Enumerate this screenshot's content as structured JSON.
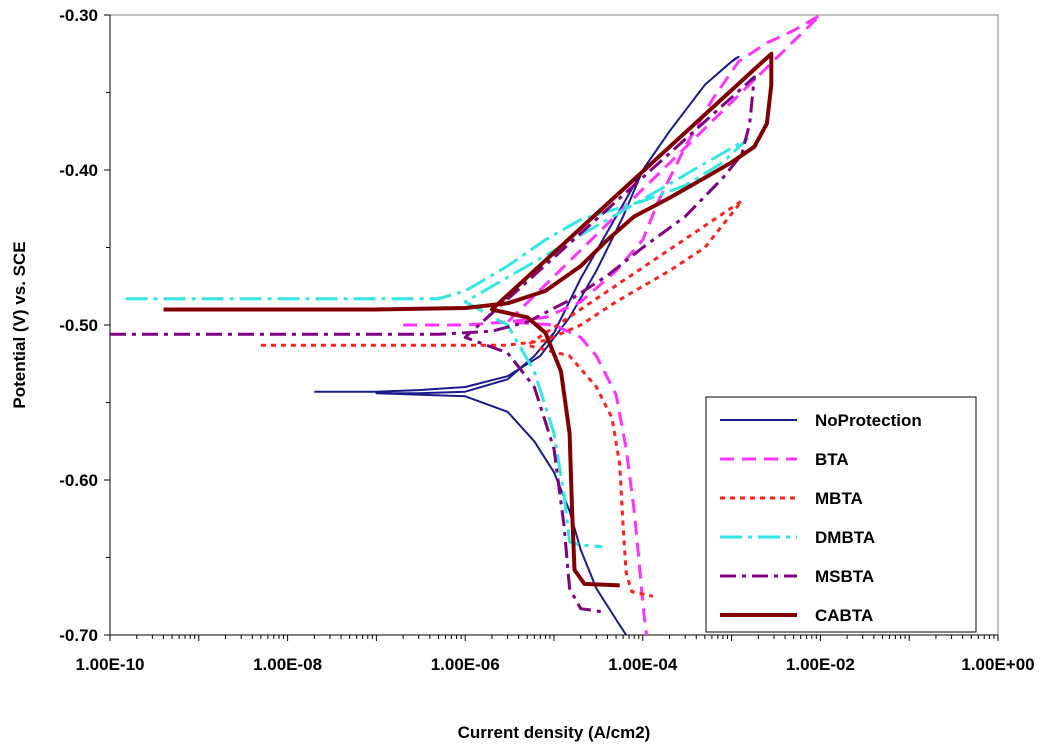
{
  "chart_data": {
    "type": "line",
    "title": "",
    "xlabel": "Current density (A/cm2)",
    "ylabel": "Potential (V) vs. SCE",
    "x_scale": "log",
    "xlim": [
      1e-10,
      1
    ],
    "ylim": [
      -0.7,
      -0.3
    ],
    "x_ticks": [
      "1.00E-10",
      "1.00E-08",
      "1.00E-06",
      "1.00E-04",
      "1.00E-02",
      "1.00E+00"
    ],
    "y_ticks": [
      "-0.30",
      "-0.40",
      "-0.50",
      "-0.60",
      "-0.70"
    ],
    "grid": false,
    "legend_position": "bottom-right",
    "series": [
      {
        "name": "NoProtection",
        "color": "#1a1a8c",
        "dash": "solid",
        "width": 2,
        "points": [
          [
            2e-08,
            -0.543
          ],
          [
            1e-07,
            -0.543
          ],
          [
            3e-07,
            -0.542
          ],
          [
            1e-06,
            -0.54
          ],
          [
            3e-06,
            -0.533
          ],
          [
            7e-06,
            -0.52
          ],
          [
            1.5e-05,
            -0.495
          ],
          [
            3e-05,
            -0.465
          ],
          [
            6e-05,
            -0.43
          ],
          [
            0.0001,
            -0.4
          ],
          [
            0.0002,
            -0.375
          ],
          [
            0.0005,
            -0.345
          ],
          [
            0.0011,
            -0.328
          ],
          [
            0.0012,
            -0.327
          ],
          [
            0.001,
            -0.33
          ],
          [
            0.0005,
            -0.345
          ],
          [
            0.0002,
            -0.375
          ],
          [
            0.0001,
            -0.4
          ],
          [
            5e-05,
            -0.43
          ],
          [
            2e-05,
            -0.47
          ],
          [
            1e-05,
            -0.505
          ],
          [
            6e-06,
            -0.52
          ],
          [
            3e-06,
            -0.535
          ],
          [
            1e-06,
            -0.543
          ],
          [
            3e-07,
            -0.544
          ],
          [
            1e-07,
            -0.544
          ],
          [
            1e-06,
            -0.546
          ],
          [
            3e-06,
            -0.556
          ],
          [
            6e-06,
            -0.575
          ],
          [
            1e-05,
            -0.595
          ],
          [
            1.5e-05,
            -0.62
          ],
          [
            2e-05,
            -0.645
          ],
          [
            3e-05,
            -0.67
          ],
          [
            5e-05,
            -0.69
          ],
          [
            6.5e-05,
            -0.7
          ]
        ]
      },
      {
        "name": "BTA",
        "color": "#ff33ff",
        "dash": "14 8",
        "width": 3,
        "points": [
          [
            2e-07,
            -0.5
          ],
          [
            1e-06,
            -0.5
          ],
          [
            3e-06,
            -0.498
          ],
          [
            8e-06,
            -0.495
          ],
          [
            2e-05,
            -0.485
          ],
          [
            5e-05,
            -0.465
          ],
          [
            0.0001,
            -0.445
          ],
          [
            0.00015,
            -0.42
          ],
          [
            0.0003,
            -0.385
          ],
          [
            0.0006,
            -0.355
          ],
          [
            0.0012,
            -0.33
          ],
          [
            0.0025,
            -0.318
          ],
          [
            0.005,
            -0.31
          ],
          [
            0.01,
            -0.3
          ],
          [
            3e-06,
            -0.498
          ],
          [
            1e-05,
            -0.5
          ],
          [
            2e-05,
            -0.508
          ],
          [
            3e-05,
            -0.52
          ],
          [
            5e-05,
            -0.545
          ],
          [
            6.5e-05,
            -0.58
          ],
          [
            8e-05,
            -0.62
          ],
          [
            9e-05,
            -0.65
          ],
          [
            0.0001,
            -0.68
          ],
          [
            0.00011,
            -0.7
          ]
        ]
      },
      {
        "name": "MBTA",
        "color": "#ff2020",
        "dash": "5 5",
        "width": 3,
        "points": [
          [
            5e-09,
            -0.513
          ],
          [
            3e-07,
            -0.513
          ],
          [
            1e-06,
            -0.513
          ],
          [
            3e-06,
            -0.513
          ],
          [
            8e-06,
            -0.51
          ],
          [
            2e-05,
            -0.5
          ],
          [
            5e-05,
            -0.485
          ],
          [
            0.0001,
            -0.475
          ],
          [
            0.0002,
            -0.465
          ],
          [
            0.0005,
            -0.45
          ],
          [
            0.0013,
            -0.42
          ],
          [
            5e-06,
            -0.513
          ],
          [
            1.5e-05,
            -0.52
          ],
          [
            3e-05,
            -0.54
          ],
          [
            4.5e-05,
            -0.56
          ],
          [
            5.5e-05,
            -0.59
          ],
          [
            6e-05,
            -0.63
          ],
          [
            6.5e-05,
            -0.66
          ],
          [
            7.5e-05,
            -0.672
          ],
          [
            0.00013,
            -0.675
          ]
        ]
      },
      {
        "name": "DMBTA",
        "color": "#33e6e6",
        "dash": "22 6 4 6",
        "width": 3,
        "points": [
          [
            1.5e-10,
            -0.483
          ],
          [
            1e-08,
            -0.483
          ],
          [
            1e-07,
            -0.483
          ],
          [
            5e-07,
            -0.483
          ],
          [
            1e-06,
            -0.478
          ],
          [
            3e-06,
            -0.462
          ],
          [
            8e-06,
            -0.445
          ],
          [
            2e-05,
            -0.432
          ],
          [
            5e-05,
            -0.425
          ],
          [
            0.0001,
            -0.42
          ],
          [
            0.0003,
            -0.41
          ],
          [
            0.0008,
            -0.395
          ],
          [
            0.0015,
            -0.38
          ],
          [
            1e-06,
            -0.485
          ],
          [
            3e-06,
            -0.5
          ],
          [
            6e-06,
            -0.53
          ],
          [
            1e-05,
            -0.57
          ],
          [
            1.3e-05,
            -0.61
          ],
          [
            1.5e-05,
            -0.64
          ],
          [
            2e-05,
            -0.642
          ],
          [
            3.5e-05,
            -0.643
          ]
        ]
      },
      {
        "name": "MSBTA",
        "color": "#800080",
        "dash": "16 6 4 6",
        "width": 3,
        "points": [
          [
            1e-10,
            -0.506
          ],
          [
            1e-08,
            -0.506
          ],
          [
            1e-07,
            -0.506
          ],
          [
            5e-07,
            -0.506
          ],
          [
            2e-06,
            -0.504
          ],
          [
            5e-06,
            -0.498
          ],
          [
            1.5e-05,
            -0.484
          ],
          [
            4e-05,
            -0.468
          ],
          [
            0.0001,
            -0.45
          ],
          [
            0.0003,
            -0.43
          ],
          [
            0.0008,
            -0.405
          ],
          [
            0.0013,
            -0.39
          ],
          [
            0.0016,
            -0.37
          ],
          [
            0.0018,
            -0.34
          ],
          [
            1e-06,
            -0.508
          ],
          [
            3e-06,
            -0.518
          ],
          [
            6e-06,
            -0.54
          ],
          [
            1e-05,
            -0.58
          ],
          [
            1.3e-05,
            -0.63
          ],
          [
            1.5e-05,
            -0.67
          ],
          [
            2e-05,
            -0.683
          ],
          [
            3.5e-05,
            -0.685
          ]
        ]
      },
      {
        "name": "CABTA",
        "color": "#800000",
        "dash": "solid",
        "width": 4,
        "points": [
          [
            4e-10,
            -0.49
          ],
          [
            1e-08,
            -0.49
          ],
          [
            1e-07,
            -0.49
          ],
          [
            1e-06,
            -0.489
          ],
          [
            3e-06,
            -0.486
          ],
          [
            8e-06,
            -0.478
          ],
          [
            2e-05,
            -0.462
          ],
          [
            4e-05,
            -0.445
          ],
          [
            8e-05,
            -0.43
          ],
          [
            0.0002,
            -0.418
          ],
          [
            0.0005,
            -0.405
          ],
          [
            0.001,
            -0.395
          ],
          [
            0.0018,
            -0.385
          ],
          [
            0.0025,
            -0.37
          ],
          [
            0.0028,
            -0.345
          ],
          [
            0.0028,
            -0.325
          ],
          [
            2e-06,
            -0.49
          ],
          [
            5e-06,
            -0.495
          ],
          [
            8e-06,
            -0.505
          ],
          [
            1.2e-05,
            -0.53
          ],
          [
            1.5e-05,
            -0.57
          ],
          [
            1.6e-05,
            -0.62
          ],
          [
            1.7e-05,
            -0.658
          ],
          [
            2.2e-05,
            -0.667
          ],
          [
            5.5e-05,
            -0.668
          ]
        ]
      }
    ]
  }
}
